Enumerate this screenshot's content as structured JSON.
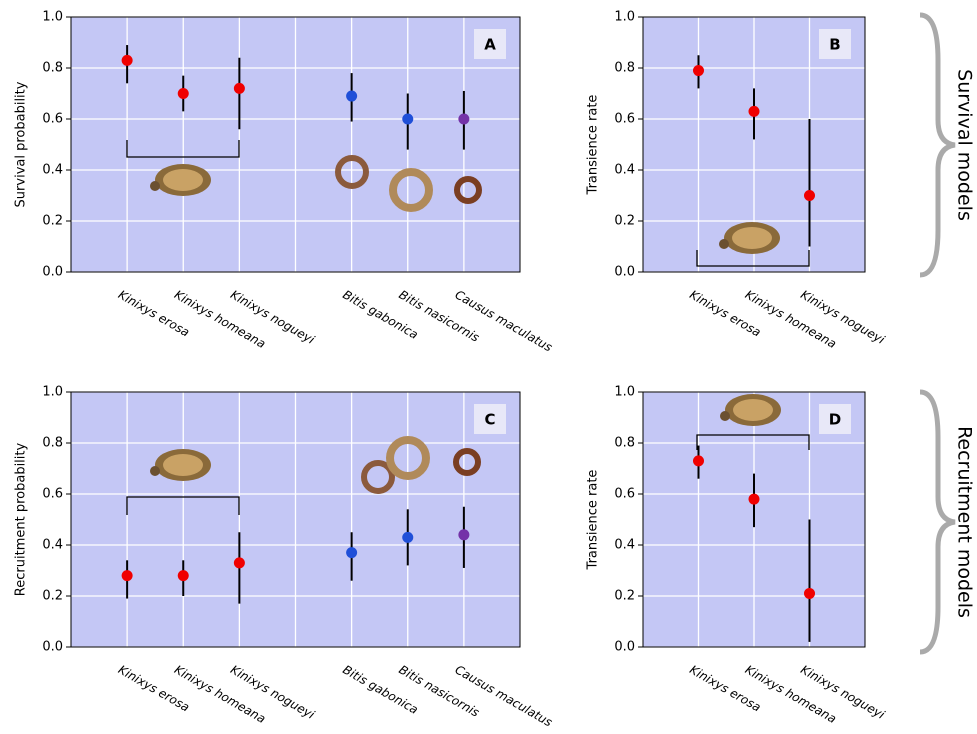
{
  "chart_data": [
    {
      "type": "errorbar",
      "panel_label": "A",
      "ylabel": "Survival probability",
      "categories": [
        "Kinixys erosa",
        "Kinixys homeana",
        "Kinixys nogueyi",
        null,
        "Bitis gabonica",
        "Bitis nasicornis",
        "Causus maculatus"
      ],
      "values": [
        0.83,
        0.7,
        0.72,
        null,
        0.69,
        0.6,
        0.6
      ],
      "lower": [
        0.74,
        0.63,
        0.56,
        null,
        0.59,
        0.48,
        0.48
      ],
      "upper": [
        0.89,
        0.77,
        0.84,
        null,
        0.78,
        0.7,
        0.71
      ],
      "colors": [
        "#f00000",
        "#f00000",
        "#f00000",
        null,
        "#1f4fd8",
        "#1f4fd8",
        "#7432a8"
      ],
      "ylim": [
        0,
        1
      ],
      "yticks": [
        {
          "value": 0,
          "label": "0.0"
        },
        0.2,
        0.4,
        0.6,
        0.8,
        {
          "value": 1,
          "label": "1.0"
        }
      ],
      "grid": true
    },
    {
      "type": "errorbar",
      "panel_label": "B",
      "ylabel": "Transience rate",
      "categories": [
        "Kinixys erosa",
        "Kinixys homeana",
        "Kinixys nogueyi"
      ],
      "values": [
        0.79,
        0.63,
        0.3
      ],
      "lower": [
        0.72,
        0.52,
        0.1
      ],
      "upper": [
        0.85,
        0.72,
        0.6
      ],
      "colors": [
        "#f00000",
        "#f00000",
        "#f00000"
      ],
      "ylim": [
        0,
        1
      ],
      "yticks": [
        {
          "value": 0,
          "label": "0.0"
        },
        0.2,
        0.4,
        0.6,
        0.8,
        {
          "value": 1,
          "label": "1.0"
        }
      ],
      "grid": true
    },
    {
      "type": "errorbar",
      "panel_label": "C",
      "ylabel": "Recruitment probability",
      "categories": [
        "Kinixys erosa",
        "Kinixys homeana",
        "Kinixys nogueyi",
        null,
        "Bitis gabonica",
        "Bitis nasicornis",
        "Causus maculatus"
      ],
      "values": [
        0.28,
        0.28,
        0.33,
        null,
        0.37,
        0.43,
        0.44
      ],
      "lower": [
        0.19,
        0.2,
        0.17,
        null,
        0.26,
        0.32,
        0.31
      ],
      "upper": [
        0.34,
        0.34,
        0.45,
        null,
        0.45,
        0.54,
        0.55
      ],
      "colors": [
        "#f00000",
        "#f00000",
        "#f00000",
        null,
        "#1f4fd8",
        "#1f4fd8",
        "#7432a8"
      ],
      "ylim": [
        0,
        1
      ],
      "yticks": [
        {
          "value": 0,
          "label": "0.0"
        },
        0.2,
        0.4,
        0.6,
        0.8,
        {
          "value": 1,
          "label": "1.0"
        }
      ],
      "grid": true
    },
    {
      "type": "errorbar",
      "panel_label": "D",
      "ylabel": "Transience rate",
      "categories": [
        "Kinixys erosa",
        "Kinixys homeana",
        "Kinixys nogueyi"
      ],
      "values": [
        0.73,
        0.58,
        0.21
      ],
      "lower": [
        0.66,
        0.47,
        0.02
      ],
      "upper": [
        0.79,
        0.68,
        0.5
      ],
      "colors": [
        "#f00000",
        "#f00000",
        "#f00000"
      ],
      "ylim": [
        0,
        1
      ],
      "yticks": [
        {
          "value": 0,
          "label": "0.0"
        },
        0.2,
        0.4,
        0.6,
        0.8,
        {
          "value": 1,
          "label": "1.0"
        }
      ],
      "grid": true
    }
  ],
  "side_labels": [
    "Survival models",
    "Recruitment models"
  ]
}
